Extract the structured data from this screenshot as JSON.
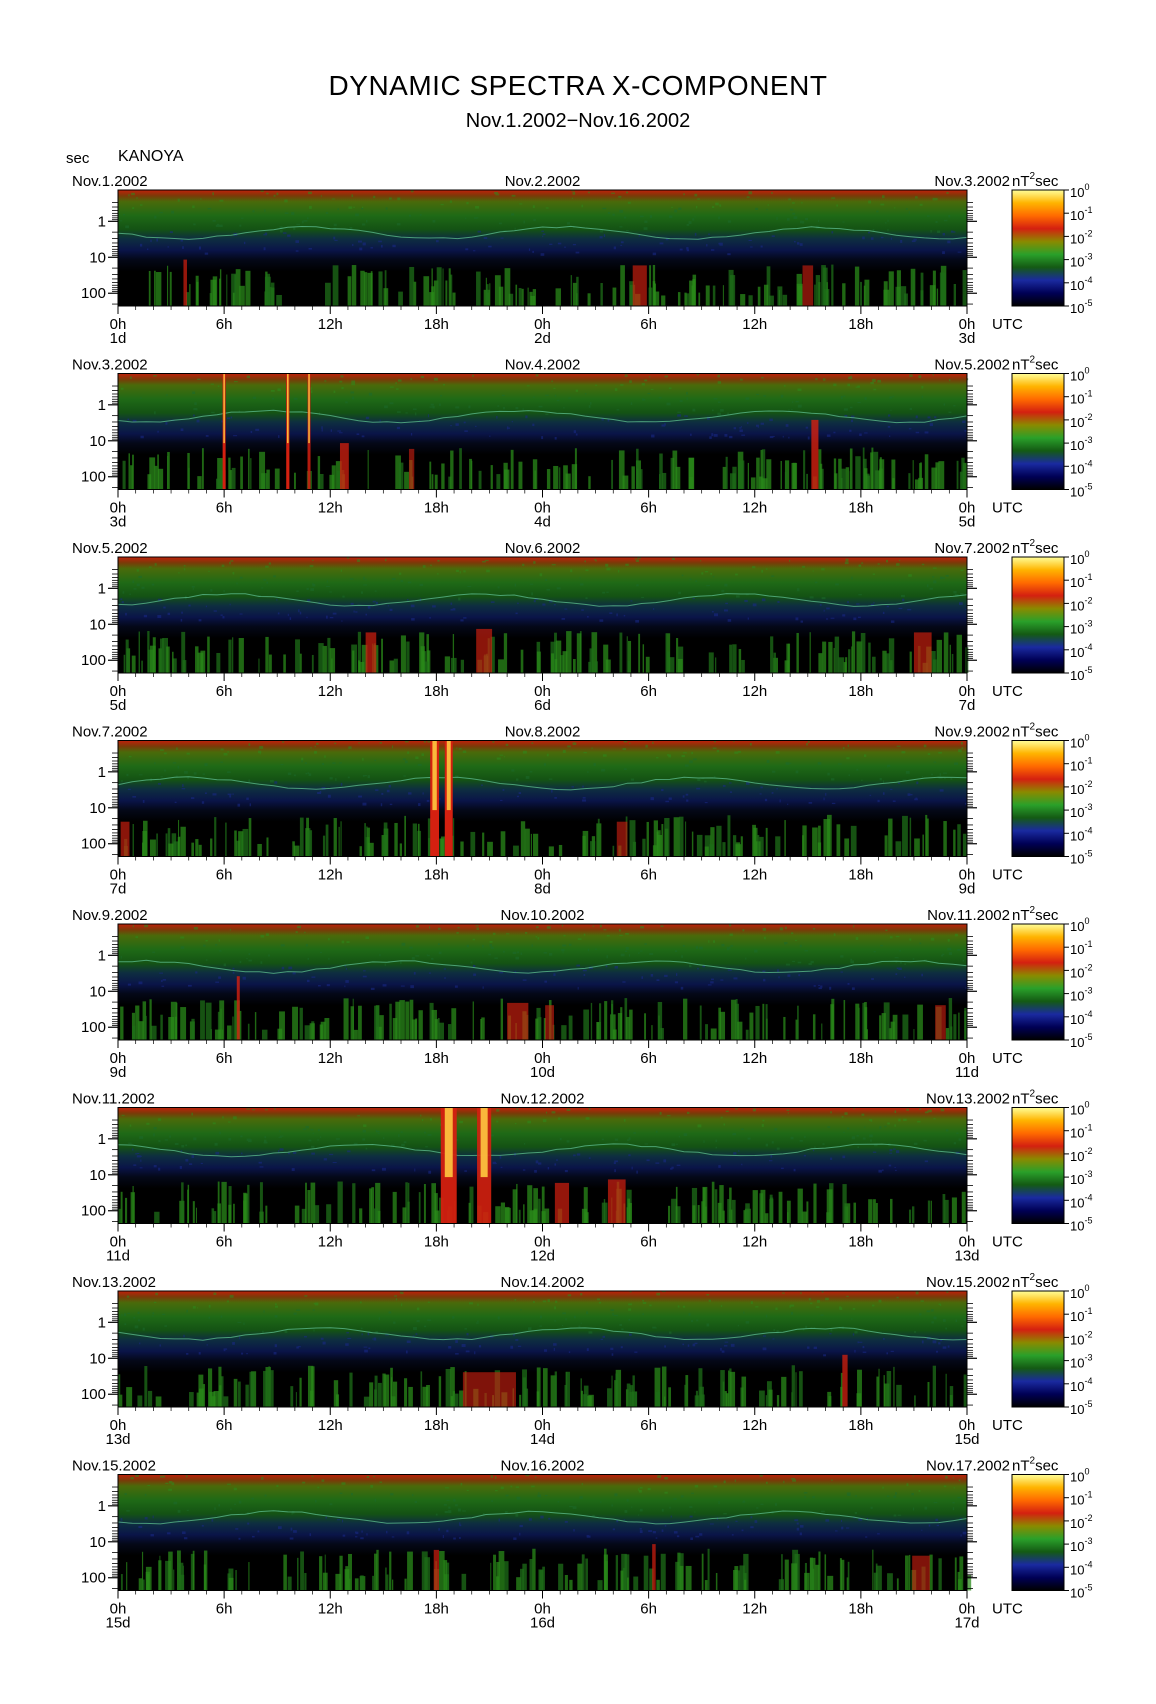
{
  "header": {
    "title": "DYNAMIC SPECTRA X-COMPONENT",
    "subtitle": "Nov.1.2002−Nov.16.2002",
    "y_unit": "sec",
    "station": "KANOYA",
    "colorbar_unit": "nT",
    "colorbar_unit_exp": "2",
    "colorbar_unit_suffix": "sec",
    "time_zone": "UTC"
  },
  "chart_data": {
    "type": "heatmap",
    "title": "DYNAMIC SPECTRA X-COMPONENT",
    "subtitle": "Nov.1.2002−Nov.16.2002",
    "ylabel": "sec",
    "y_scale": "log",
    "y_inverted": true,
    "y_ticks": [
      "1",
      "10",
      "100"
    ],
    "x_ticks": [
      "0h",
      "6h",
      "12h",
      "18h",
      "0h",
      "6h",
      "12h",
      "18h",
      "0h"
    ],
    "colorbar": {
      "unit": "nT^2 sec",
      "scale": "log",
      "range": [
        1e-05,
        1
      ],
      "ticks": [
        {
          "base": "10",
          "exp": "0"
        },
        {
          "base": "10",
          "exp": "-1"
        },
        {
          "base": "10",
          "exp": "-2"
        },
        {
          "base": "10",
          "exp": "-3"
        },
        {
          "base": "10",
          "exp": "-4"
        },
        {
          "base": "10",
          "exp": "-5"
        }
      ],
      "colors": [
        "#000000",
        "#000055",
        "#1a2aa0",
        "#145a14",
        "#2aa02a",
        "#8a8a00",
        "#d42010",
        "#ff6a00",
        "#ffb400",
        "#ffff99"
      ]
    },
    "panels": [
      {
        "left_date": "Nov.1.2002",
        "mid_date": "Nov.2.2002",
        "right_date": "Nov.3.2002",
        "day_labels": [
          "1d",
          "2d",
          "3d"
        ],
        "bursts": [
          {
            "h": 3.8,
            "w": 0.2,
            "top": 0.6,
            "i": 0.7
          },
          {
            "h": 29.5,
            "w": 0.8,
            "top": 0.65,
            "i": 0.65
          },
          {
            "h": 39,
            "w": 0.6,
            "top": 0.65,
            "i": 0.6
          }
        ]
      },
      {
        "left_date": "Nov.3.2002",
        "mid_date": "Nov.4.2002",
        "right_date": "Nov.5.2002",
        "day_labels": [
          "3d",
          "4d",
          "5d"
        ],
        "bursts": [
          {
            "h": 6.0,
            "w": 0.15,
            "top": 0.0,
            "i": 1.0
          },
          {
            "h": 9.6,
            "w": 0.18,
            "top": 0.0,
            "i": 1.0
          },
          {
            "h": 10.8,
            "w": 0.12,
            "top": 0.0,
            "i": 0.85
          },
          {
            "h": 12.8,
            "w": 0.5,
            "top": 0.6,
            "i": 0.75
          },
          {
            "h": 16.6,
            "w": 0.3,
            "top": 0.65,
            "i": 0.6
          },
          {
            "h": 39.4,
            "w": 0.4,
            "top": 0.4,
            "i": 0.8
          }
        ]
      },
      {
        "left_date": "Nov.5.2002",
        "mid_date": "Nov.6.2002",
        "right_date": "Nov.7.2002",
        "day_labels": [
          "5d",
          "6d",
          "7d"
        ],
        "bursts": [
          {
            "h": 14.3,
            "w": 0.6,
            "top": 0.65,
            "i": 0.7
          },
          {
            "h": 20.7,
            "w": 0.9,
            "top": 0.62,
            "i": 0.65
          },
          {
            "h": 45.5,
            "w": 1.0,
            "top": 0.65,
            "i": 0.65
          }
        ]
      },
      {
        "left_date": "Nov.7.2002",
        "mid_date": "Nov.8.2002",
        "right_date": "Nov.9.2002",
        "day_labels": [
          "7d",
          "8d",
          "9d"
        ],
        "bursts": [
          {
            "h": 17.9,
            "w": 0.5,
            "top": 0.0,
            "i": 1.0
          },
          {
            "h": 18.7,
            "w": 0.45,
            "top": 0.0,
            "i": 1.0
          },
          {
            "h": 0.4,
            "w": 0.5,
            "top": 0.7,
            "i": 0.65
          },
          {
            "h": 28.5,
            "w": 0.6,
            "top": 0.7,
            "i": 0.6
          }
        ]
      },
      {
        "left_date": "Nov.9.2002",
        "mid_date": "Nov.10.2002",
        "right_date": "Nov.11.2002",
        "day_labels": [
          "9d",
          "10d",
          "11d"
        ],
        "bursts": [
          {
            "h": 6.8,
            "w": 0.15,
            "top": 0.45,
            "i": 0.8
          },
          {
            "h": 22.6,
            "w": 1.2,
            "top": 0.68,
            "i": 0.65
          },
          {
            "h": 24.4,
            "w": 0.5,
            "top": 0.7,
            "i": 0.6
          },
          {
            "h": 46.5,
            "w": 0.6,
            "top": 0.7,
            "i": 0.6
          }
        ]
      },
      {
        "left_date": "Nov.11.2002",
        "mid_date": "Nov.12.2002",
        "right_date": "Nov.13.2002",
        "day_labels": [
          "11d",
          "12d",
          "13d"
        ],
        "bursts": [
          {
            "h": 18.7,
            "w": 0.9,
            "top": 0.0,
            "i": 0.95
          },
          {
            "h": 20.7,
            "w": 0.8,
            "top": 0.0,
            "i": 0.9
          },
          {
            "h": 25.1,
            "w": 0.8,
            "top": 0.65,
            "i": 0.7
          },
          {
            "h": 28.2,
            "w": 1.0,
            "top": 0.62,
            "i": 0.7
          }
        ]
      },
      {
        "left_date": "Nov.13.2002",
        "mid_date": "Nov.14.2002",
        "right_date": "Nov.15.2002",
        "day_labels": [
          "13d",
          "14d",
          "15d"
        ],
        "bursts": [
          {
            "h": 21.0,
            "w": 3.0,
            "top": 0.7,
            "i": 0.6
          },
          {
            "h": 41.1,
            "w": 0.3,
            "top": 0.55,
            "i": 0.75
          }
        ]
      },
      {
        "left_date": "Nov.15.2002",
        "mid_date": "Nov.16.2002",
        "right_date": "Nov.17.2002",
        "day_labels": [
          "15d",
          "16d",
          "17d"
        ],
        "bursts": [
          {
            "h": 18.0,
            "w": 0.3,
            "top": 0.65,
            "i": 0.7
          },
          {
            "h": 30.3,
            "w": 0.2,
            "top": 0.6,
            "i": 0.7
          },
          {
            "h": 45.4,
            "w": 1.0,
            "top": 0.7,
            "i": 0.6
          }
        ]
      }
    ]
  }
}
